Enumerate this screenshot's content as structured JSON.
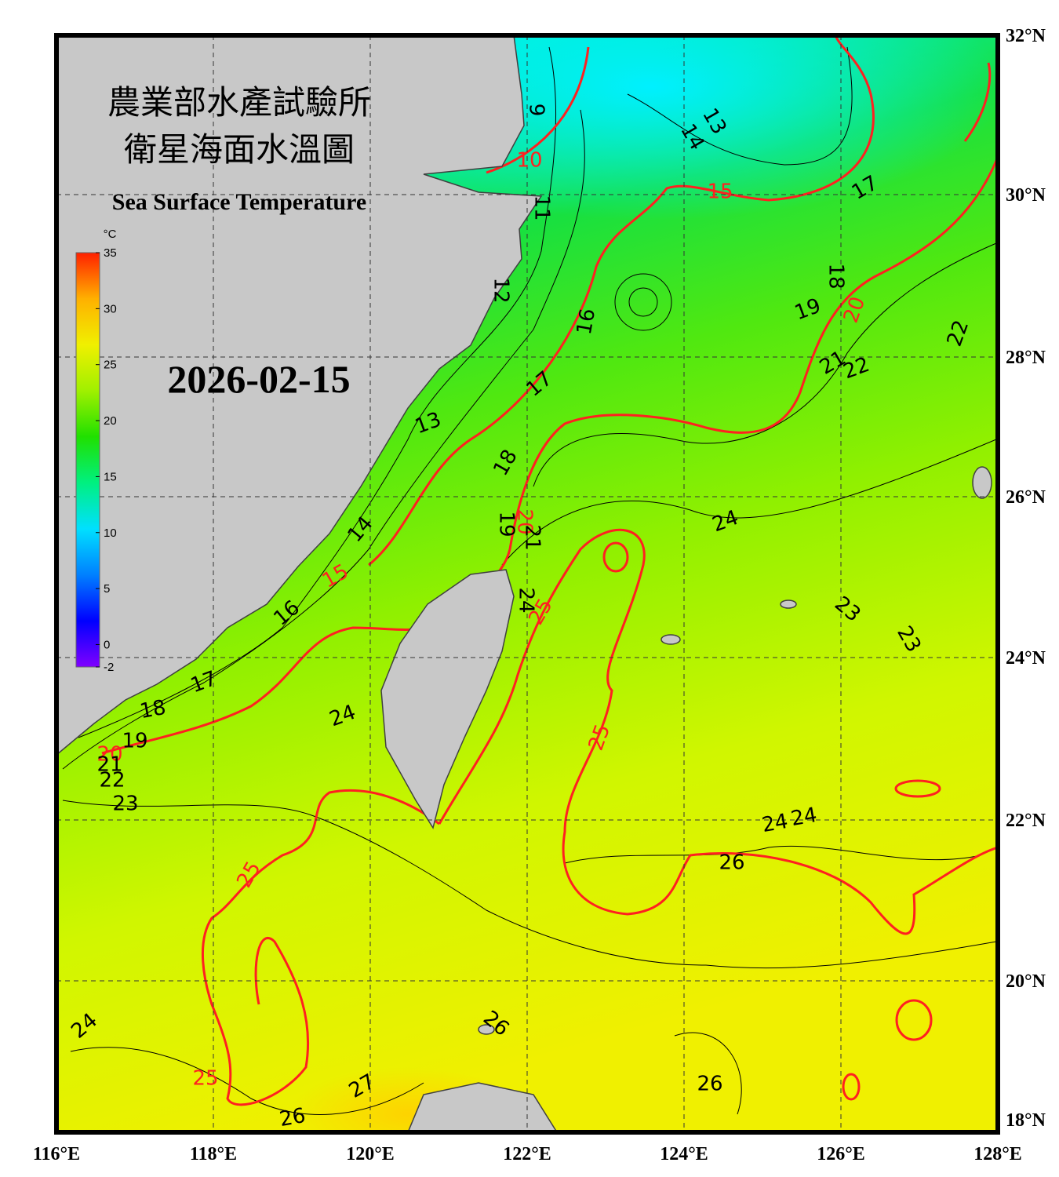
{
  "header": {
    "title_zh_1": "農業部水產試驗所",
    "title_zh_2": "衛星海面水溫圖",
    "title_en": "Sea Surface Temperature",
    "date": "2026-02-15"
  },
  "colorbar": {
    "unit": "°C",
    "lim": [
      -2,
      35
    ],
    "ticks": [
      -2,
      0,
      5,
      10,
      15,
      20,
      25,
      30,
      35
    ],
    "colors": [
      "#8000ff",
      "#0000ff",
      "#0080ff",
      "#00e0ff",
      "#00f080",
      "#20e000",
      "#a0f000",
      "#f0f000",
      "#ffb000",
      "#ff2000"
    ]
  },
  "axes": {
    "x_ticks": [
      "116°E",
      "118°E",
      "120°E",
      "122°E",
      "124°E",
      "126°E",
      "128°E"
    ],
    "y_ticks": [
      "32°N",
      "30°N",
      "28°N",
      "26°N",
      "24°N",
      "22°N",
      "20°N",
      "18°N"
    ]
  },
  "contour_labels": [
    {
      "value": 10,
      "color": "#ff2020"
    },
    {
      "value": 15,
      "color": "#ff2020"
    },
    {
      "value": 15,
      "color": "#ff2020"
    },
    {
      "value": 20,
      "color": "#ff2020"
    },
    {
      "value": 20,
      "color": "#ff2020"
    },
    {
      "value": 20,
      "color": "#ff2020"
    },
    {
      "value": 25,
      "color": "#ff2020"
    },
    {
      "value": 25,
      "color": "#ff2020"
    },
    {
      "value": 25,
      "color": "#ff2020"
    },
    {
      "value": 25,
      "color": "#ff2020"
    },
    {
      "value": 9,
      "color": "#000000"
    },
    {
      "value": 13,
      "color": "#000000"
    },
    {
      "value": 14,
      "color": "#000000"
    },
    {
      "value": 17,
      "color": "#000000"
    },
    {
      "value": 11,
      "color": "#000000"
    },
    {
      "value": 12,
      "color": "#000000"
    },
    {
      "value": 16,
      "color": "#000000"
    },
    {
      "value": 18,
      "color": "#000000"
    },
    {
      "value": 19,
      "color": "#000000"
    },
    {
      "value": 22,
      "color": "#000000"
    },
    {
      "value": 21,
      "color": "#000000"
    },
    {
      "value": 22,
      "color": "#000000"
    },
    {
      "value": 17,
      "color": "#000000"
    },
    {
      "value": 13,
      "color": "#000000"
    },
    {
      "value": 18,
      "color": "#000000"
    },
    {
      "value": 19,
      "color": "#000000"
    },
    {
      "value": 21,
      "color": "#000000"
    },
    {
      "value": 24,
      "color": "#000000"
    },
    {
      "value": 14,
      "color": "#000000"
    },
    {
      "value": 23,
      "color": "#000000"
    },
    {
      "value": 23,
      "color": "#000000"
    },
    {
      "value": 16,
      "color": "#000000"
    },
    {
      "value": 24,
      "color": "#000000"
    },
    {
      "value": 17,
      "color": "#000000"
    },
    {
      "value": 18,
      "color": "#000000"
    },
    {
      "value": 19,
      "color": "#000000"
    },
    {
      "value": 21,
      "color": "#000000"
    },
    {
      "value": 22,
      "color": "#000000"
    },
    {
      "value": 23,
      "color": "#000000"
    },
    {
      "value": 24,
      "color": "#000000"
    },
    {
      "value": 24,
      "color": "#000000"
    },
    {
      "value": 24,
      "color": "#000000"
    },
    {
      "value": 26,
      "color": "#000000"
    },
    {
      "value": 24,
      "color": "#000000"
    },
    {
      "value": 26,
      "color": "#000000"
    },
    {
      "value": 26,
      "color": "#000000"
    },
    {
      "value": 27,
      "color": "#000000"
    },
    {
      "value": 26,
      "color": "#000000"
    }
  ]
}
